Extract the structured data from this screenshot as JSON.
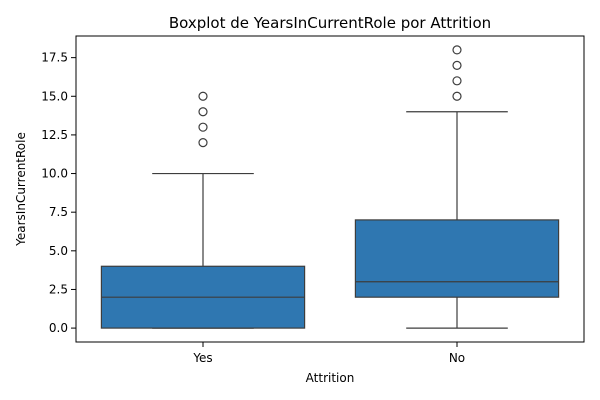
{
  "chart_data": {
    "type": "boxplot",
    "title": "Boxplot de YearsInCurrentRole por Attrition",
    "xlabel": "Attrition",
    "ylabel": "YearsInCurrentRole",
    "ylim": [
      -0.9,
      18.9
    ],
    "yticks": [
      0.0,
      2.5,
      5.0,
      7.5,
      10.0,
      12.5,
      15.0,
      17.5
    ],
    "ytick_labels": [
      "0.0",
      "2.5",
      "5.0",
      "7.5",
      "10.0",
      "12.5",
      "15.0",
      "17.5"
    ],
    "categories": [
      "Yes",
      "No"
    ],
    "box_color": "#2f77b1",
    "line_color": "#3d3d3d",
    "boxes": [
      {
        "category": "Yes",
        "whisker_low": 0,
        "q1": 0,
        "median": 2,
        "q3": 4,
        "whisker_high": 10,
        "outliers": [
          12,
          13,
          14,
          15
        ]
      },
      {
        "category": "No",
        "whisker_low": 0,
        "q1": 2,
        "median": 3,
        "q3": 7,
        "whisker_high": 14,
        "outliers": [
          15,
          16,
          17,
          18
        ]
      }
    ],
    "grid": false,
    "legend": "none"
  }
}
